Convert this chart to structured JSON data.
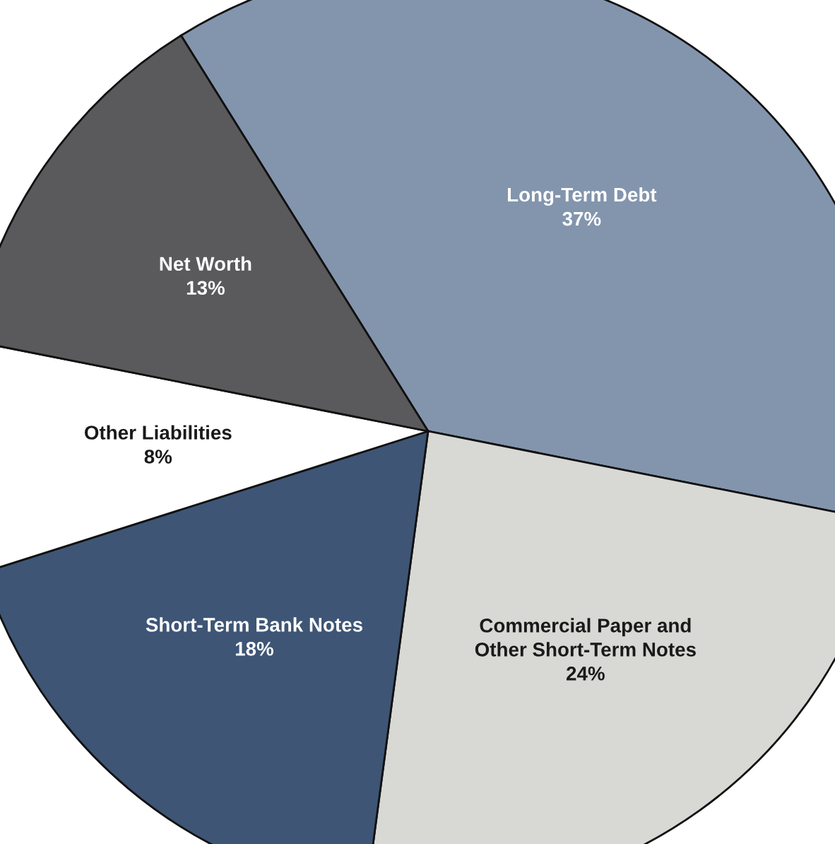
{
  "chart_data": {
    "type": "pie",
    "categories": [
      "Long-Term Debt",
      "Commercial Paper and\nOther Short-Term Notes",
      "Short-Term Bank Notes",
      "Other Liabilities",
      "Net Worth"
    ],
    "values": [
      37,
      24,
      18,
      8,
      13
    ],
    "colors": [
      "#8395ad",
      "#d8d8d4",
      "#3e5575",
      "#ffffff",
      "#5a5a5c"
    ],
    "value_labels": [
      "37%",
      "24%",
      "18%",
      "8%",
      "13%"
    ]
  }
}
